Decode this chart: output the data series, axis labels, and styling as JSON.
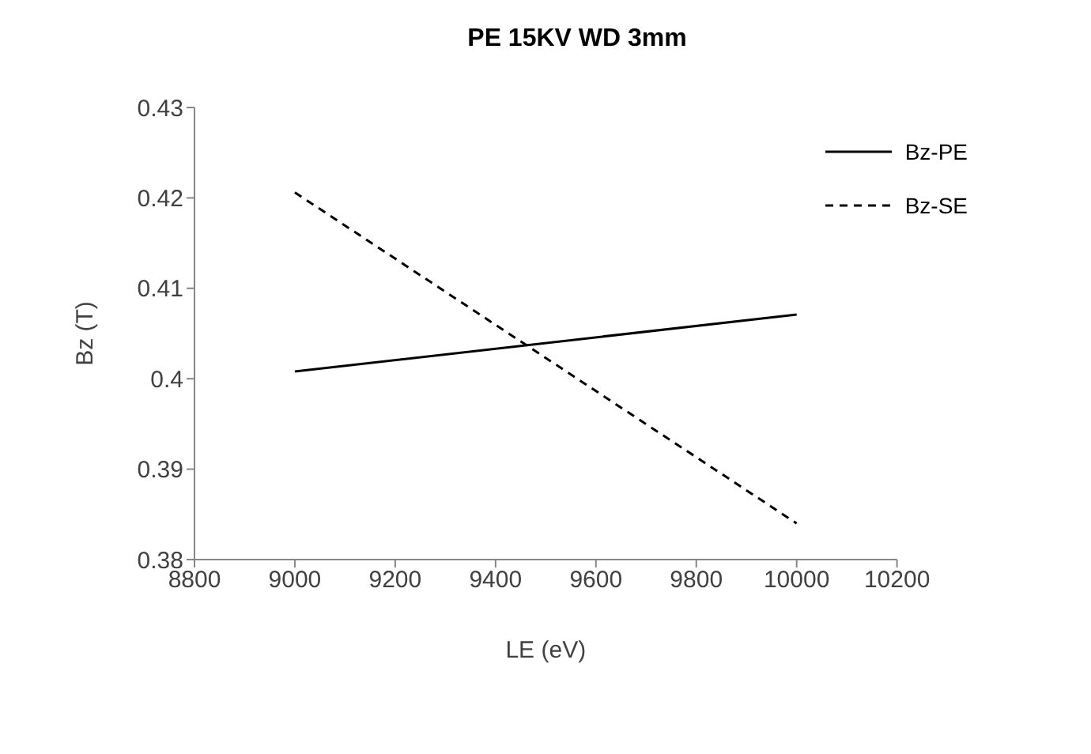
{
  "chart_data": {
    "type": "line",
    "title": "PE 15KV WD 3mm",
    "xlabel": "LE (eV)",
    "ylabel": "Bz (T)",
    "x": [
      9000,
      10000
    ],
    "series": [
      {
        "name": "Bz-PE",
        "color": "#000000",
        "values": [
          0.4008,
          0.4071
        ],
        "line_style": "solid"
      },
      {
        "name": "Bz-SE",
        "color": "#000000",
        "values": [
          0.4206,
          0.384
        ],
        "line_style": "dashed"
      }
    ],
    "xlim": [
      8800,
      10200
    ],
    "xticks": [
      8800,
      9000,
      9200,
      9400,
      9600,
      9800,
      10000,
      10200
    ],
    "ylim": [
      0.38,
      0.43
    ],
    "yticks": [
      0.38,
      0.39,
      0.4,
      0.41,
      0.42,
      0.43
    ],
    "grid": false,
    "legend": "top right",
    "marker": "none"
  }
}
